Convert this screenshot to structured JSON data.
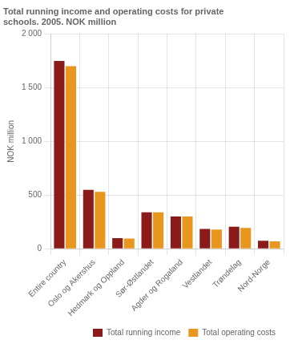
{
  "chart_data": {
    "type": "bar",
    "title": "Total running income and operating costs for private\nschools. 2005. NOK million",
    "ylabel": "NOK million",
    "categories": [
      "Entire country",
      "Oslo og Akershus",
      "Hedmark og Oppland",
      "Sør-Østlandet",
      "Agder og Rogaland",
      "Vestlandet",
      "Trøndelag",
      "Nord-Norge"
    ],
    "series": [
      {
        "name": "Total running income",
        "color": "#8B1A1A",
        "values": [
          1750,
          550,
          100,
          340,
          300,
          185,
          205,
          75
        ]
      },
      {
        "name": "Total operating costs",
        "color": "#E8961E",
        "values": [
          1700,
          530,
          95,
          340,
          300,
          180,
          195,
          70
        ]
      }
    ],
    "ylim": [
      0,
      2000
    ],
    "yticks": [
      0,
      500,
      {
        "value": 1000,
        "label": "1 000"
      },
      {
        "value": 1500,
        "label": "1 500"
      },
      {
        "value": 2000,
        "label": "2 000"
      }
    ],
    "grid": true,
    "legend": "lower right"
  }
}
